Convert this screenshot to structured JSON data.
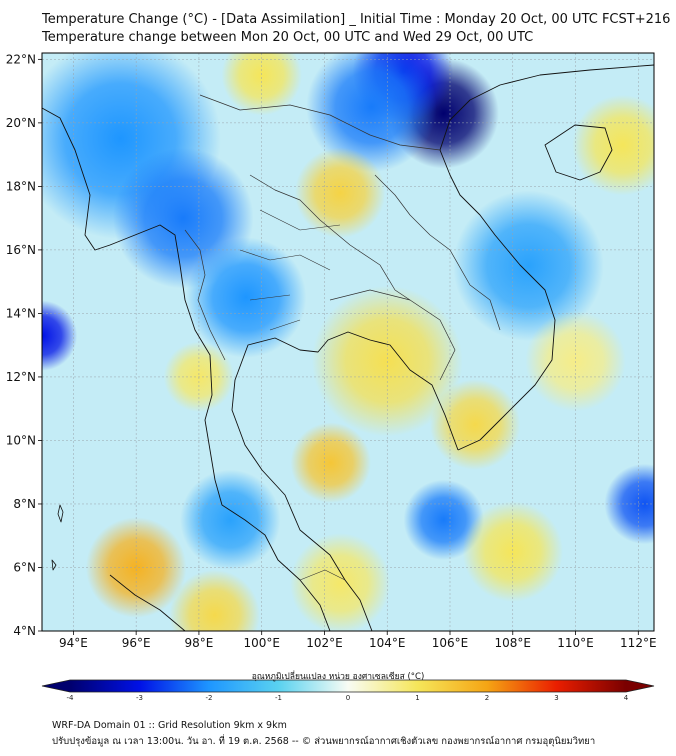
{
  "title_line1": "Temperature Change (°C) - [Data Assimilation] _ Initial Time : Monday 20 Oct, 00 UTC FCST+216",
  "title_line2": "Temperature change between Mon 20 Oct, 00 UTC and Wed 29 Oct, 00 UTC",
  "map": {
    "lon_range": [
      93,
      112.5
    ],
    "lat_range": [
      4,
      22.2
    ],
    "lat_ticks": [
      "4°N",
      "6°N",
      "8°N",
      "10°N",
      "12°N",
      "14°N",
      "16°N",
      "18°N",
      "20°N",
      "22°N"
    ],
    "lat_values": [
      4,
      6,
      8,
      10,
      12,
      14,
      16,
      18,
      20,
      22
    ],
    "lon_ticks": [
      "94°E",
      "96°E",
      "98°E",
      "100°E",
      "102°E",
      "104°E",
      "106°E",
      "108°E",
      "110°E",
      "112°E"
    ],
    "lon_values": [
      94,
      96,
      98,
      100,
      102,
      104,
      106,
      108,
      110,
      112
    ],
    "field_base_color": "#c4ecf6",
    "features": [
      {
        "lon": 105.8,
        "lat": 20.3,
        "value": -4.0,
        "spread": 1.1
      },
      {
        "lon": 104.5,
        "lat": 21.6,
        "value": -3.0,
        "spread": 1.0
      },
      {
        "lon": 103.5,
        "lat": 20.5,
        "value": -2.2,
        "spread": 1.3
      },
      {
        "lon": 95.5,
        "lat": 19.5,
        "value": -2.0,
        "spread": 2.0
      },
      {
        "lon": 97.5,
        "lat": 17.0,
        "value": -2.2,
        "spread": 1.4
      },
      {
        "lon": 99.5,
        "lat": 14.5,
        "value": -2.0,
        "spread": 1.2
      },
      {
        "lon": 93.0,
        "lat": 13.3,
        "value": -3.0,
        "spread": 0.7
      },
      {
        "lon": 112.2,
        "lat": 8.0,
        "value": -2.5,
        "spread": 0.8
      },
      {
        "lon": 105.8,
        "lat": 7.5,
        "value": -2.2,
        "spread": 0.8
      },
      {
        "lon": 99.0,
        "lat": 7.5,
        "value": -1.8,
        "spread": 1.0
      },
      {
        "lon": 108.5,
        "lat": 15.5,
        "value": -1.8,
        "spread": 1.5
      },
      {
        "lon": 102.5,
        "lat": 17.8,
        "value": 1.3,
        "spread": 0.9
      },
      {
        "lon": 100.0,
        "lat": 21.5,
        "value": 1.0,
        "spread": 0.8
      },
      {
        "lon": 111.5,
        "lat": 19.3,
        "value": 1.0,
        "spread": 1.0
      },
      {
        "lon": 104.0,
        "lat": 12.5,
        "value": 1.1,
        "spread": 1.5
      },
      {
        "lon": 106.8,
        "lat": 10.5,
        "value": 1.2,
        "spread": 0.9
      },
      {
        "lon": 102.2,
        "lat": 9.3,
        "value": 1.5,
        "spread": 0.8
      },
      {
        "lon": 96.0,
        "lat": 6.0,
        "value": 1.8,
        "spread": 1.0
      },
      {
        "lon": 98.5,
        "lat": 4.5,
        "value": 1.2,
        "spread": 0.9
      },
      {
        "lon": 98.0,
        "lat": 12.0,
        "value": 0.9,
        "spread": 0.7
      },
      {
        "lon": 108.0,
        "lat": 6.5,
        "value": 1.0,
        "spread": 1.0
      },
      {
        "lon": 110.0,
        "lat": 12.5,
        "value": 0.7,
        "spread": 1.0
      },
      {
        "lon": 102.5,
        "lat": 5.5,
        "value": 0.9,
        "spread": 1.0
      }
    ]
  },
  "colorbar": {
    "title": "อุณหภูมิเปลี่ยนแปลง หน่วย องศาเซลเซียส (°C)",
    "min": -4,
    "max": 4,
    "tick_labels": [
      "-4",
      "-3",
      "-2",
      "-1",
      "0",
      "1",
      "2",
      "3",
      "4"
    ],
    "tick_values": [
      -4,
      -3,
      -2,
      -1,
      0,
      1,
      2,
      3,
      4
    ],
    "stops": [
      {
        "v": -4.0,
        "c": "#00006e"
      },
      {
        "v": -3.0,
        "c": "#0011e6"
      },
      {
        "v": -2.0,
        "c": "#1e96ff"
      },
      {
        "v": -1.0,
        "c": "#5ad2f0"
      },
      {
        "v": 0.0,
        "c": "#f8fcf4"
      },
      {
        "v": 1.0,
        "c": "#f5e65a"
      },
      {
        "v": 2.0,
        "c": "#f5a514"
      },
      {
        "v": 3.0,
        "c": "#ea1e00"
      },
      {
        "v": 4.0,
        "c": "#7a0000"
      }
    ]
  },
  "footer_line1": "WRF-DA Domain 01 :: Grid Resolution 9km x 9km",
  "footer_line2": "ปรับปรุงข้อมูล ณ เวลา 13:00น. วัน อา. ที่ 19 ต.ค. 2568 -- © ส่วนพยากรณ์อากาศเชิงตัวเลข กองพยากรณ์อากาศ กรมอุตุนิยมวิทยา",
  "colors": {
    "coast": "#111111",
    "border": "#333333",
    "grid": "#9aa3aa",
    "frame": "#000000"
  }
}
